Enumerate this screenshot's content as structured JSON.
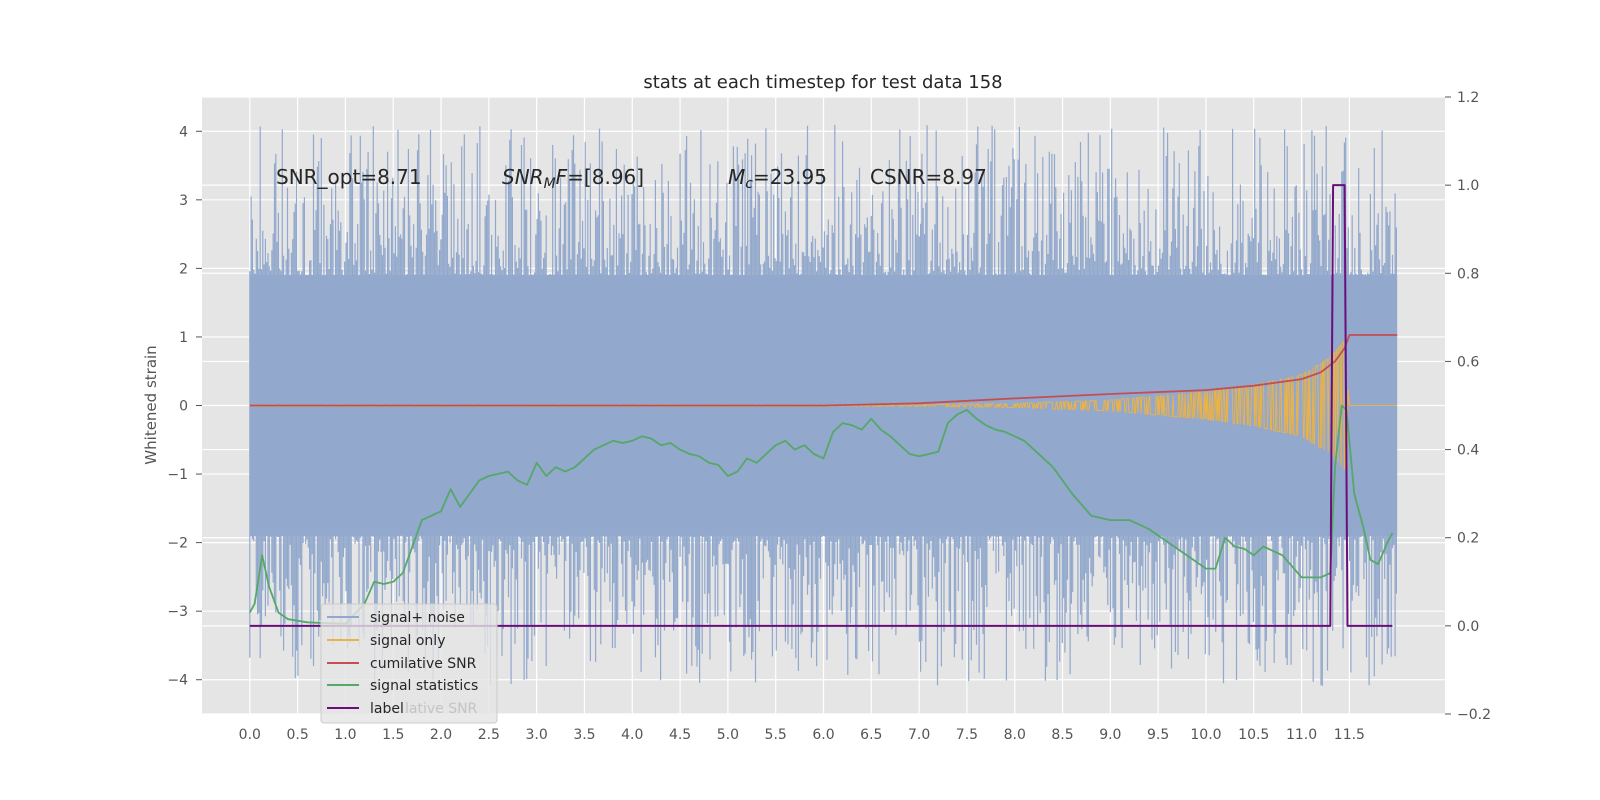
{
  "chart_data": {
    "type": "line",
    "title": "stats at each timestep for test data 158",
    "ylabel": "Whitened strain",
    "y2label": "",
    "xlim": [
      -0.5,
      12.5
    ],
    "ylim": [
      -4.5,
      4.5
    ],
    "y2lim": [
      -0.2,
      1.2
    ],
    "grid": true,
    "x_ticks": [
      "0.0",
      "0.5",
      "1.0",
      "1.5",
      "2.0",
      "2.5",
      "3.0",
      "3.5",
      "4.0",
      "4.5",
      "5.0",
      "5.5",
      "6.0",
      "6.5",
      "7.0",
      "7.5",
      "8.0",
      "8.5",
      "9.0",
      "9.5",
      "10.0",
      "10.5",
      "11.0",
      "11.5"
    ],
    "y_ticks": [
      "4",
      "3",
      "2",
      "1",
      "0",
      "−1",
      "−2",
      "−3",
      "−4"
    ],
    "y2_ticks": [
      "1.2",
      "1.0",
      "0.8",
      "0.6",
      "0.4",
      "0.2",
      "0.0",
      "−0.2"
    ],
    "annotations": [
      {
        "label": "SNR_opt=8.71",
        "x": 0.2,
        "y": 3.2
      },
      {
        "label": "SNR_MF=[8.96]",
        "x": 2.6,
        "y": 3.2
      },
      {
        "label": "M_c=23.95",
        "x": 5.0,
        "y": 3.2
      },
      {
        "label": "CSNR=8.97",
        "x": 6.5,
        "y": 3.2
      }
    ],
    "annotation_parts": {
      "snr_opt": "SNR_opt=8.71",
      "snr_mf_base": "SNR",
      "snr_mf_sub": "M",
      "snr_mf_rest": "F=[8.96]",
      "mc_base": "M",
      "mc_sub": "c",
      "mc_rest": "=23.95",
      "csnr": "CSNR=8.97"
    },
    "legend_position": "lower-left",
    "legend_overlap_text": "lative SNR",
    "series": [
      {
        "name": "signal+ noise",
        "axis": "left",
        "color": "#92a8cc",
        "kind": "noise",
        "band_x": [
          0,
          12.0
        ],
        "core_range": [
          -1.9,
          1.9
        ],
        "peak_range": [
          -4.1,
          4.1
        ]
      },
      {
        "name": "signal only",
        "axis": "left",
        "color": "#e9b24a",
        "kind": "chirp",
        "envelope_x": [
          7.0,
          8.0,
          9.0,
          10.0,
          10.5,
          11.0,
          11.3,
          11.45,
          11.5
        ],
        "envelope_amp": [
          0.01,
          0.03,
          0.08,
          0.2,
          0.3,
          0.45,
          0.7,
          0.95,
          0.0
        ]
      },
      {
        "name": "cumilative SNR",
        "axis": "right",
        "color": "#c44e52",
        "x": [
          0.0,
          6.0,
          7.0,
          8.0,
          9.0,
          10.0,
          10.5,
          11.0,
          11.2,
          11.35,
          11.45,
          11.5,
          12.0
        ],
        "y": [
          0.5,
          0.5,
          0.505,
          0.516,
          0.526,
          0.535,
          0.545,
          0.56,
          0.575,
          0.6,
          0.63,
          0.66,
          0.66
        ]
      },
      {
        "name": "signal statistics",
        "axis": "right",
        "color": "#55a868",
        "x": [
          0.0,
          0.05,
          0.13,
          0.2,
          0.3,
          0.4,
          0.6,
          0.8,
          1.0,
          1.2,
          1.3,
          1.4,
          1.5,
          1.6,
          1.7,
          1.8,
          1.9,
          2.0,
          2.1,
          2.2,
          2.3,
          2.4,
          2.5,
          2.7,
          2.8,
          2.9,
          3.0,
          3.1,
          3.2,
          3.3,
          3.4,
          3.5,
          3.6,
          3.7,
          3.8,
          3.9,
          4.0,
          4.1,
          4.2,
          4.3,
          4.4,
          4.5,
          4.6,
          4.7,
          4.8,
          4.9,
          5.0,
          5.1,
          5.2,
          5.3,
          5.4,
          5.5,
          5.6,
          5.7,
          5.8,
          5.9,
          6.0,
          6.1,
          6.2,
          6.3,
          6.4,
          6.5,
          6.6,
          6.7,
          6.8,
          6.9,
          7.0,
          7.1,
          7.2,
          7.3,
          7.4,
          7.5,
          7.6,
          7.7,
          7.8,
          7.9,
          8.0,
          8.1,
          8.2,
          8.4,
          8.6,
          8.8,
          9.0,
          9.2,
          9.4,
          9.6,
          9.8,
          10.0,
          10.1,
          10.2,
          10.3,
          10.4,
          10.5,
          10.6,
          10.8,
          11.0,
          11.2,
          11.3,
          11.35,
          11.42,
          11.47,
          11.55,
          11.65,
          11.72,
          11.8,
          11.9,
          11.95
        ],
        "y": [
          0.03,
          0.05,
          0.16,
          0.09,
          0.03,
          0.015,
          0.008,
          0.006,
          0.005,
          0.05,
          0.1,
          0.095,
          0.1,
          0.12,
          0.18,
          0.24,
          0.25,
          0.26,
          0.31,
          0.27,
          0.3,
          0.33,
          0.34,
          0.35,
          0.33,
          0.32,
          0.37,
          0.34,
          0.36,
          0.35,
          0.36,
          0.38,
          0.4,
          0.41,
          0.42,
          0.415,
          0.42,
          0.43,
          0.425,
          0.41,
          0.415,
          0.4,
          0.39,
          0.385,
          0.37,
          0.365,
          0.34,
          0.35,
          0.38,
          0.37,
          0.39,
          0.41,
          0.42,
          0.4,
          0.41,
          0.39,
          0.38,
          0.44,
          0.46,
          0.455,
          0.445,
          0.47,
          0.445,
          0.43,
          0.41,
          0.39,
          0.385,
          0.39,
          0.395,
          0.46,
          0.48,
          0.49,
          0.47,
          0.455,
          0.445,
          0.44,
          0.43,
          0.42,
          0.4,
          0.36,
          0.3,
          0.25,
          0.24,
          0.24,
          0.22,
          0.19,
          0.16,
          0.13,
          0.13,
          0.2,
          0.18,
          0.175,
          0.16,
          0.18,
          0.16,
          0.11,
          0.11,
          0.12,
          0.36,
          0.5,
          0.49,
          0.3,
          0.22,
          0.15,
          0.14,
          0.19,
          0.21
        ]
      },
      {
        "name": "label",
        "axis": "right",
        "color": "#6a0f7a",
        "x": [
          0.0,
          11.3,
          11.33,
          11.45,
          11.48,
          11.6,
          11.95
        ],
        "y": [
          0.0,
          0.0,
          1.0,
          1.0,
          0.0,
          0.0,
          0.0
        ]
      }
    ]
  }
}
